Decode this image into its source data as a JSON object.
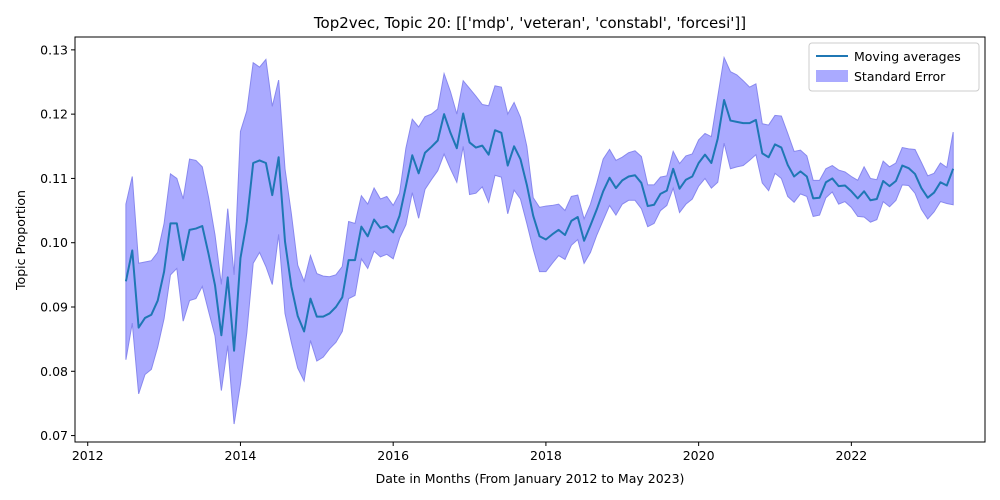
{
  "chart_data": {
    "type": "line",
    "title": "Top2vec, Topic 20: [['mdp', 'veteran', 'constabl', 'forcesi']]",
    "xlabel": "Date in Months (From January 2012 to May 2023)",
    "ylabel": "Topic Proportion",
    "xlim": [
      "2011-11",
      "2023-10"
    ],
    "ylim": [
      0.069,
      0.132
    ],
    "x_ticks": [
      "2012",
      "2014",
      "2016",
      "2018",
      "2020",
      "2022"
    ],
    "y_ticks": [
      "0.07",
      "0.08",
      "0.09",
      "0.10",
      "0.11",
      "0.12",
      "0.13"
    ],
    "grid": false,
    "legend": {
      "placement": "top-right"
    },
    "colors": {
      "line": "#1f77b4",
      "band": "#aaaaff",
      "band_edge": "#8888ee"
    },
    "series": [
      {
        "name": "Moving averages",
        "x": [
          "2012-07",
          "2012-08",
          "2012-09",
          "2012-10",
          "2012-11",
          "2012-12",
          "2013-01",
          "2013-02",
          "2013-03",
          "2013-04",
          "2013-05",
          "2013-06",
          "2013-07",
          "2013-08",
          "2013-09",
          "2013-10",
          "2013-11",
          "2013-12",
          "2014-01",
          "2014-02",
          "2014-03",
          "2014-04",
          "2014-05",
          "2014-06",
          "2014-07",
          "2014-08",
          "2014-09",
          "2014-10",
          "2014-11",
          "2014-12",
          "2015-01",
          "2015-02",
          "2015-03",
          "2015-04",
          "2015-05",
          "2015-06",
          "2015-07",
          "2015-08",
          "2015-09",
          "2015-10",
          "2015-11",
          "2015-12",
          "2016-01",
          "2016-02",
          "2016-03",
          "2016-04",
          "2016-05",
          "2016-06",
          "2016-07",
          "2016-08",
          "2016-09",
          "2016-10",
          "2016-11",
          "2016-12",
          "2017-01",
          "2017-02",
          "2017-03",
          "2017-04",
          "2017-05",
          "2017-06",
          "2017-07",
          "2017-08",
          "2017-09",
          "2017-10",
          "2017-11",
          "2017-12",
          "2018-01",
          "2018-02",
          "2018-03",
          "2018-04",
          "2018-05",
          "2018-06",
          "2018-07",
          "2018-08",
          "2018-09",
          "2018-10",
          "2018-11",
          "2018-12",
          "2019-01",
          "2019-02",
          "2019-03",
          "2019-04",
          "2019-05",
          "2019-06",
          "2019-07",
          "2019-08",
          "2019-09",
          "2019-10",
          "2019-11",
          "2019-12",
          "2020-01",
          "2020-02",
          "2020-03",
          "2020-04",
          "2020-05",
          "2020-06",
          "2020-07",
          "2020-08",
          "2020-09",
          "2020-10",
          "2020-11",
          "2020-12",
          "2021-01",
          "2021-02",
          "2021-03",
          "2021-04",
          "2021-05",
          "2021-06",
          "2021-07",
          "2021-08",
          "2021-09",
          "2021-10",
          "2021-11",
          "2021-12",
          "2022-01",
          "2022-02",
          "2022-03",
          "2022-04",
          "2022-05",
          "2022-06",
          "2022-07",
          "2022-08",
          "2022-09",
          "2022-10",
          "2022-11",
          "2022-12",
          "2023-01",
          "2023-02",
          "2023-03",
          "2023-04",
          "2023-05"
        ],
        "values": [
          0.094,
          0.0988,
          0.0868,
          0.0883,
          0.0888,
          0.091,
          0.0955,
          0.103,
          0.103,
          0.0973,
          0.102,
          0.1022,
          0.1026,
          0.0982,
          0.0934,
          0.0856,
          0.0946,
          0.0832,
          0.0976,
          0.1033,
          0.1124,
          0.1128,
          0.1124,
          0.1074,
          0.1133,
          0.1002,
          0.0932,
          0.0886,
          0.0862,
          0.0913,
          0.0885,
          0.0885,
          0.089,
          0.09,
          0.0915,
          0.0973,
          0.0973,
          0.1025,
          0.101,
          0.1036,
          0.1023,
          0.1026,
          0.1016,
          0.1042,
          0.1088,
          0.1136,
          0.1108,
          0.114,
          0.1149,
          0.1159,
          0.12,
          0.1171,
          0.1147,
          0.1201,
          0.1156,
          0.1148,
          0.1151,
          0.1137,
          0.1175,
          0.1171,
          0.112,
          0.115,
          0.113,
          0.109,
          0.1042,
          0.101,
          0.1005,
          0.1013,
          0.102,
          0.1012,
          0.1034,
          0.104,
          0.1003,
          0.1027,
          0.1052,
          0.108,
          0.1101,
          0.1085,
          0.1097,
          0.1103,
          0.1105,
          0.1093,
          0.1057,
          0.1059,
          0.1076,
          0.1081,
          0.1115,
          0.1084,
          0.1098,
          0.1103,
          0.1124,
          0.1137,
          0.1124,
          0.1162,
          0.1222,
          0.119,
          0.1188,
          0.1186,
          0.1186,
          0.1191,
          0.1139,
          0.1133,
          0.1153,
          0.1148,
          0.1121,
          0.1103,
          0.1111,
          0.1103,
          0.1069,
          0.107,
          0.1094,
          0.11,
          0.1088,
          0.1089,
          0.108,
          0.1069,
          0.108,
          0.1066,
          0.1068,
          0.1096,
          0.1088,
          0.1096,
          0.112,
          0.1116,
          0.1107,
          0.1085,
          0.107,
          0.1078,
          0.1094,
          0.1089,
          0.1115
        ]
      }
    ],
    "bands": [
      {
        "name": "Standard Error",
        "upper": [
          0.106,
          0.1103,
          0.0968,
          0.097,
          0.0972,
          0.0985,
          0.103,
          0.1107,
          0.11,
          0.1068,
          0.113,
          0.1128,
          0.1118,
          0.107,
          0.1012,
          0.0935,
          0.1053,
          0.095,
          0.1173,
          0.1205,
          0.128,
          0.1273,
          0.1285,
          0.1212,
          0.1253,
          0.1115,
          0.1045,
          0.0965,
          0.094,
          0.098,
          0.0952,
          0.0948,
          0.0947,
          0.095,
          0.0963,
          0.1033,
          0.103,
          0.1073,
          0.106,
          0.1085,
          0.1068,
          0.1072,
          0.1058,
          0.1077,
          0.1147,
          0.1192,
          0.118,
          0.1196,
          0.12,
          0.1208,
          0.1263,
          0.1235,
          0.12,
          0.1252,
          0.124,
          0.1228,
          0.1215,
          0.1213,
          0.1244,
          0.1242,
          0.12,
          0.1218,
          0.1195,
          0.115,
          0.107,
          0.1055,
          0.1057,
          0.1058,
          0.106,
          0.105,
          0.1072,
          0.1074,
          0.1037,
          0.106,
          0.1093,
          0.113,
          0.1145,
          0.1128,
          0.1133,
          0.114,
          0.1143,
          0.1134,
          0.109,
          0.109,
          0.1102,
          0.1104,
          0.1142,
          0.1123,
          0.1135,
          0.1138,
          0.116,
          0.117,
          0.1165,
          0.1227,
          0.1288,
          0.1266,
          0.1261,
          0.1252,
          0.1242,
          0.1247,
          0.1185,
          0.1183,
          0.1198,
          0.1197,
          0.117,
          0.1142,
          0.1144,
          0.1135,
          0.1097,
          0.1097,
          0.1115,
          0.112,
          0.1113,
          0.111,
          0.1103,
          0.1097,
          0.1118,
          0.11,
          0.1098,
          0.1127,
          0.1118,
          0.1124,
          0.1148,
          0.1146,
          0.1145,
          0.1125,
          0.1104,
          0.1108,
          0.1124,
          0.1117,
          0.1172
        ],
        "lower": [
          0.0818,
          0.0875,
          0.0765,
          0.0795,
          0.0803,
          0.0838,
          0.0882,
          0.095,
          0.096,
          0.0878,
          0.091,
          0.0913,
          0.0932,
          0.0893,
          0.0855,
          0.077,
          0.084,
          0.0718,
          0.078,
          0.086,
          0.0968,
          0.0985,
          0.0963,
          0.0935,
          0.1013,
          0.089,
          0.0845,
          0.0805,
          0.0785,
          0.0848,
          0.0816,
          0.0822,
          0.0835,
          0.0845,
          0.0862,
          0.0913,
          0.0918,
          0.0975,
          0.096,
          0.0987,
          0.0978,
          0.0982,
          0.0975,
          0.1007,
          0.1028,
          0.1078,
          0.1038,
          0.1083,
          0.1098,
          0.1112,
          0.1138,
          0.1115,
          0.1094,
          0.115,
          0.1075,
          0.1077,
          0.1087,
          0.1063,
          0.1105,
          0.1102,
          0.1045,
          0.1082,
          0.1068,
          0.103,
          0.099,
          0.0955,
          0.0955,
          0.0968,
          0.098,
          0.0974,
          0.0996,
          0.1005,
          0.0968,
          0.0985,
          0.1012,
          0.1035,
          0.1058,
          0.1043,
          0.106,
          0.1066,
          0.1066,
          0.1053,
          0.1025,
          0.103,
          0.105,
          0.1058,
          0.1085,
          0.1047,
          0.106,
          0.1068,
          0.1088,
          0.11,
          0.1085,
          0.1094,
          0.1155,
          0.1115,
          0.1118,
          0.112,
          0.1128,
          0.1137,
          0.1093,
          0.1081,
          0.1108,
          0.11,
          0.1072,
          0.1063,
          0.1076,
          0.1072,
          0.1041,
          0.1043,
          0.107,
          0.1079,
          0.106,
          0.1064,
          0.1055,
          0.1041,
          0.104,
          0.1032,
          0.1036,
          0.1064,
          0.1056,
          0.1066,
          0.109,
          0.1089,
          0.1077,
          0.1052,
          0.1037,
          0.1048,
          0.1064,
          0.1061,
          0.1059
        ]
      }
    ]
  }
}
